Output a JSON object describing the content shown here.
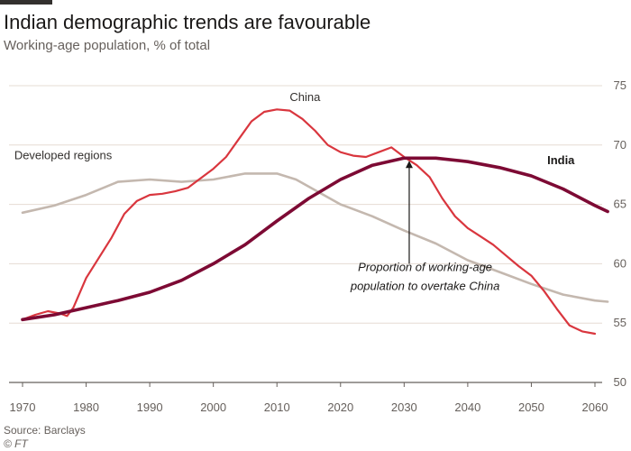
{
  "header": {
    "title": "Indian demographic trends are favourable",
    "subtitle": "Working-age population, % of total"
  },
  "footer": {
    "source": "Source: Barclays",
    "credit": "© FT"
  },
  "colors": {
    "india": "#7d0a34",
    "china": "#d9363e",
    "developed": "#c4b8af",
    "grid": "#e6dcd3",
    "axis": "#66605c"
  },
  "chart_data": {
    "type": "line",
    "title": "Indian demographic trends are favourable",
    "subtitle": "Working-age population, % of total",
    "xlim": [
      1970,
      2062
    ],
    "ylim": [
      50,
      75
    ],
    "x_ticks": [
      1970,
      1980,
      1990,
      2000,
      2010,
      2020,
      2030,
      2040,
      2050,
      2060
    ],
    "y_ticks": [
      50,
      55,
      60,
      65,
      70,
      75
    ],
    "y_axis_position": "right",
    "grid": true,
    "series": [
      {
        "name": "China",
        "color": "#d9363e",
        "points": [
          [
            1970,
            55.3
          ],
          [
            1972,
            55.7
          ],
          [
            1974,
            56.0
          ],
          [
            1976,
            55.8
          ],
          [
            1977,
            55.6
          ],
          [
            1978,
            56.3
          ],
          [
            1980,
            58.8
          ],
          [
            1982,
            60.5
          ],
          [
            1984,
            62.2
          ],
          [
            1986,
            64.2
          ],
          [
            1988,
            65.3
          ],
          [
            1990,
            65.8
          ],
          [
            1992,
            65.9
          ],
          [
            1994,
            66.1
          ],
          [
            1996,
            66.4
          ],
          [
            1998,
            67.2
          ],
          [
            2000,
            68.0
          ],
          [
            2002,
            69.0
          ],
          [
            2004,
            70.5
          ],
          [
            2006,
            72.0
          ],
          [
            2008,
            72.8
          ],
          [
            2010,
            73.0
          ],
          [
            2012,
            72.9
          ],
          [
            2014,
            72.2
          ],
          [
            2016,
            71.2
          ],
          [
            2018,
            70.0
          ],
          [
            2020,
            69.4
          ],
          [
            2022,
            69.1
          ],
          [
            2024,
            69.0
          ],
          [
            2026,
            69.4
          ],
          [
            2028,
            69.8
          ],
          [
            2030,
            69.0
          ],
          [
            2032,
            68.3
          ],
          [
            2034,
            67.3
          ],
          [
            2036,
            65.5
          ],
          [
            2038,
            64.0
          ],
          [
            2040,
            63.0
          ],
          [
            2042,
            62.3
          ],
          [
            2044,
            61.6
          ],
          [
            2046,
            60.7
          ],
          [
            2048,
            59.8
          ],
          [
            2050,
            59.0
          ],
          [
            2052,
            57.7
          ],
          [
            2054,
            56.2
          ],
          [
            2056,
            54.8
          ],
          [
            2058,
            54.3
          ],
          [
            2060,
            54.1
          ]
        ]
      },
      {
        "name": "Developed regions",
        "color": "#c4b8af",
        "points": [
          [
            1970,
            64.3
          ],
          [
            1975,
            64.9
          ],
          [
            1980,
            65.8
          ],
          [
            1985,
            66.9
          ],
          [
            1990,
            67.1
          ],
          [
            1995,
            66.9
          ],
          [
            2000,
            67.1
          ],
          [
            2005,
            67.6
          ],
          [
            2010,
            67.6
          ],
          [
            2013,
            67.1
          ],
          [
            2015,
            66.5
          ],
          [
            2020,
            65.0
          ],
          [
            2025,
            64.0
          ],
          [
            2030,
            62.8
          ],
          [
            2035,
            61.7
          ],
          [
            2040,
            60.3
          ],
          [
            2045,
            59.3
          ],
          [
            2050,
            58.3
          ],
          [
            2055,
            57.4
          ],
          [
            2060,
            56.9
          ],
          [
            2062,
            56.8
          ]
        ]
      },
      {
        "name": "India",
        "color": "#7d0a34",
        "points": [
          [
            1970,
            55.3
          ],
          [
            1975,
            55.7
          ],
          [
            1980,
            56.3
          ],
          [
            1985,
            56.9
          ],
          [
            1990,
            57.6
          ],
          [
            1995,
            58.6
          ],
          [
            2000,
            60.0
          ],
          [
            2005,
            61.6
          ],
          [
            2010,
            63.6
          ],
          [
            2015,
            65.5
          ],
          [
            2020,
            67.1
          ],
          [
            2025,
            68.3
          ],
          [
            2030,
            68.9
          ],
          [
            2035,
            68.9
          ],
          [
            2040,
            68.6
          ],
          [
            2045,
            68.1
          ],
          [
            2050,
            67.4
          ],
          [
            2055,
            66.3
          ],
          [
            2060,
            64.9
          ],
          [
            2062,
            64.4
          ]
        ]
      }
    ],
    "annotations": [
      {
        "id": "china",
        "text": "China",
        "x": 2012,
        "y": 73.7,
        "style": "normal"
      },
      {
        "id": "developed",
        "text": "Developed regions",
        "x": 1968.7,
        "y": 68.8,
        "style": "normal"
      },
      {
        "id": "india",
        "text": "India",
        "x": 2052.5,
        "y": 68.4,
        "style": "bold"
      },
      {
        "id": "overtake1",
        "text": "Proportion of working-age",
        "x": 2033.3,
        "y": 59.4,
        "style": "italic"
      },
      {
        "id": "overtake2",
        "text": "population to overtake China",
        "x": 2033.3,
        "y": 57.8,
        "style": "italic"
      }
    ],
    "arrow": {
      "x": 2030.8,
      "from_y": 60.0,
      "to_y": 68.9
    }
  }
}
